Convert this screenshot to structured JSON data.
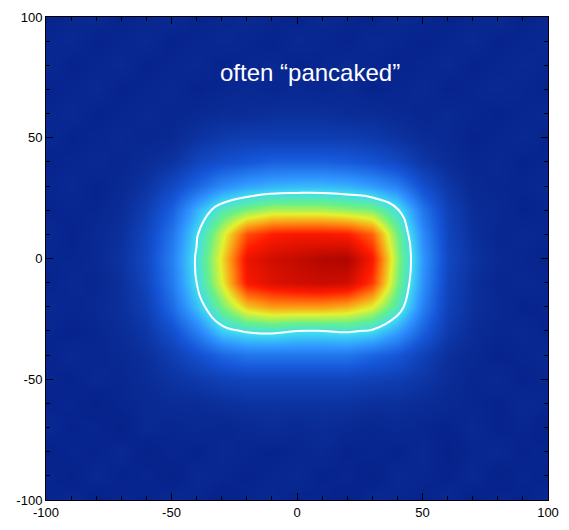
{
  "chart_data": {
    "type": "heatmap",
    "x": [
      -100,
      -90,
      -80,
      -70,
      -60,
      -50,
      -40,
      -30,
      -20,
      -10,
      0,
      10,
      20,
      30,
      40,
      50,
      60,
      70,
      80,
      90,
      100
    ],
    "y": [
      -100,
      -90,
      -80,
      -70,
      -60,
      -50,
      -40,
      -30,
      -20,
      -10,
      0,
      10,
      20,
      30,
      40,
      50,
      60,
      70,
      80,
      90,
      100
    ],
    "z": [
      [
        0.07,
        0.09,
        0.06,
        0.08,
        0.07,
        0.09,
        0.08,
        0.06,
        0.08,
        0.09,
        0.07,
        0.08,
        0.06,
        0.09,
        0.08,
        0.07,
        0.09,
        0.06,
        0.08,
        0.07,
        0.09
      ],
      [
        0.08,
        0.06,
        0.09,
        0.07,
        0.08,
        0.06,
        0.09,
        0.08,
        0.07,
        0.08,
        0.09,
        0.07,
        0.08,
        0.06,
        0.09,
        0.08,
        0.07,
        0.09,
        0.06,
        0.08,
        0.07
      ],
      [
        0.06,
        0.08,
        0.07,
        0.09,
        0.06,
        0.08,
        0.07,
        0.09,
        0.08,
        0.07,
        0.08,
        0.09,
        0.07,
        0.08,
        0.07,
        0.09,
        0.06,
        0.08,
        0.09,
        0.07,
        0.08
      ],
      [
        0.09,
        0.07,
        0.08,
        0.06,
        0.09,
        0.08,
        0.09,
        0.08,
        0.09,
        0.1,
        0.09,
        0.1,
        0.09,
        0.08,
        0.09,
        0.08,
        0.07,
        0.09,
        0.07,
        0.08,
        0.06
      ],
      [
        0.07,
        0.08,
        0.06,
        0.08,
        0.09,
        0.1,
        0.1,
        0.11,
        0.12,
        0.12,
        0.12,
        0.12,
        0.12,
        0.11,
        0.11,
        0.1,
        0.09,
        0.08,
        0.07,
        0.09,
        0.08
      ],
      [
        0.08,
        0.07,
        0.09,
        0.08,
        0.1,
        0.12,
        0.14,
        0.16,
        0.17,
        0.17,
        0.17,
        0.17,
        0.17,
        0.16,
        0.15,
        0.13,
        0.1,
        0.08,
        0.09,
        0.07,
        0.08
      ],
      [
        0.07,
        0.09,
        0.08,
        0.09,
        0.11,
        0.15,
        0.2,
        0.25,
        0.28,
        0.28,
        0.28,
        0.28,
        0.28,
        0.25,
        0.22,
        0.16,
        0.11,
        0.09,
        0.07,
        0.08,
        0.09
      ],
      [
        0.08,
        0.07,
        0.08,
        0.1,
        0.13,
        0.2,
        0.3,
        0.42,
        0.46,
        0.47,
        0.45,
        0.45,
        0.46,
        0.44,
        0.36,
        0.24,
        0.14,
        0.1,
        0.08,
        0.09,
        0.07
      ],
      [
        0.09,
        0.08,
        0.09,
        0.11,
        0.15,
        0.26,
        0.4,
        0.55,
        0.68,
        0.72,
        0.72,
        0.72,
        0.7,
        0.64,
        0.5,
        0.3,
        0.16,
        0.11,
        0.09,
        0.07,
        0.08
      ],
      [
        0.07,
        0.09,
        0.08,
        0.11,
        0.17,
        0.29,
        0.45,
        0.64,
        0.86,
        0.9,
        0.92,
        0.93,
        0.92,
        0.82,
        0.56,
        0.33,
        0.17,
        0.11,
        0.08,
        0.09,
        0.08
      ],
      [
        0.08,
        0.08,
        0.09,
        0.12,
        0.18,
        0.3,
        0.46,
        0.66,
        0.88,
        0.92,
        0.94,
        0.96,
        0.97,
        0.86,
        0.58,
        0.34,
        0.18,
        0.12,
        0.09,
        0.08,
        0.07
      ],
      [
        0.09,
        0.07,
        0.09,
        0.11,
        0.17,
        0.28,
        0.44,
        0.62,
        0.8,
        0.85,
        0.86,
        0.86,
        0.85,
        0.78,
        0.55,
        0.32,
        0.17,
        0.11,
        0.08,
        0.09,
        0.08
      ],
      [
        0.07,
        0.08,
        0.08,
        0.1,
        0.15,
        0.24,
        0.38,
        0.5,
        0.56,
        0.6,
        0.6,
        0.6,
        0.58,
        0.56,
        0.46,
        0.28,
        0.16,
        0.1,
        0.09,
        0.07,
        0.08
      ],
      [
        0.08,
        0.09,
        0.07,
        0.09,
        0.12,
        0.18,
        0.25,
        0.32,
        0.36,
        0.38,
        0.39,
        0.39,
        0.38,
        0.35,
        0.3,
        0.2,
        0.13,
        0.09,
        0.08,
        0.08,
        0.09
      ],
      [
        0.07,
        0.08,
        0.09,
        0.08,
        0.1,
        0.12,
        0.17,
        0.2,
        0.22,
        0.24,
        0.24,
        0.24,
        0.23,
        0.21,
        0.18,
        0.13,
        0.1,
        0.08,
        0.09,
        0.07,
        0.08
      ],
      [
        0.09,
        0.07,
        0.08,
        0.09,
        0.08,
        0.09,
        0.12,
        0.14,
        0.15,
        0.15,
        0.15,
        0.15,
        0.15,
        0.14,
        0.12,
        0.1,
        0.09,
        0.07,
        0.08,
        0.09,
        0.07
      ],
      [
        0.08,
        0.09,
        0.07,
        0.08,
        0.09,
        0.08,
        0.09,
        0.1,
        0.1,
        0.11,
        0.11,
        0.11,
        0.1,
        0.1,
        0.09,
        0.08,
        0.09,
        0.08,
        0.07,
        0.08,
        0.09
      ],
      [
        0.07,
        0.08,
        0.09,
        0.07,
        0.08,
        0.09,
        0.07,
        0.08,
        0.09,
        0.08,
        0.09,
        0.08,
        0.09,
        0.07,
        0.08,
        0.09,
        0.07,
        0.08,
        0.09,
        0.08,
        0.07
      ],
      [
        0.09,
        0.07,
        0.08,
        0.09,
        0.07,
        0.08,
        0.09,
        0.07,
        0.08,
        0.09,
        0.07,
        0.08,
        0.09,
        0.08,
        0.07,
        0.08,
        0.09,
        0.07,
        0.08,
        0.09,
        0.08
      ],
      [
        0.08,
        0.09,
        0.07,
        0.08,
        0.09,
        0.07,
        0.08,
        0.09,
        0.08,
        0.07,
        0.09,
        0.08,
        0.07,
        0.09,
        0.08,
        0.07,
        0.08,
        0.09,
        0.07,
        0.08,
        0.09
      ],
      [
        0.07,
        0.08,
        0.09,
        0.07,
        0.08,
        0.09,
        0.07,
        0.08,
        0.09,
        0.08,
        0.07,
        0.09,
        0.08,
        0.07,
        0.09,
        0.08,
        0.07,
        0.08,
        0.09,
        0.07,
        0.08
      ]
    ],
    "zlim": [
      0,
      1
    ],
    "contour_level": 0.45,
    "xlim": [
      -100,
      100
    ],
    "ylim": [
      -100,
      100
    ],
    "xticks": [
      -100,
      -50,
      0,
      50,
      100
    ],
    "yticks": [
      -100,
      -50,
      0,
      50,
      100
    ],
    "annotations": [
      {
        "text": "often “pancaked”",
        "x": 5,
        "y": 77
      }
    ]
  }
}
